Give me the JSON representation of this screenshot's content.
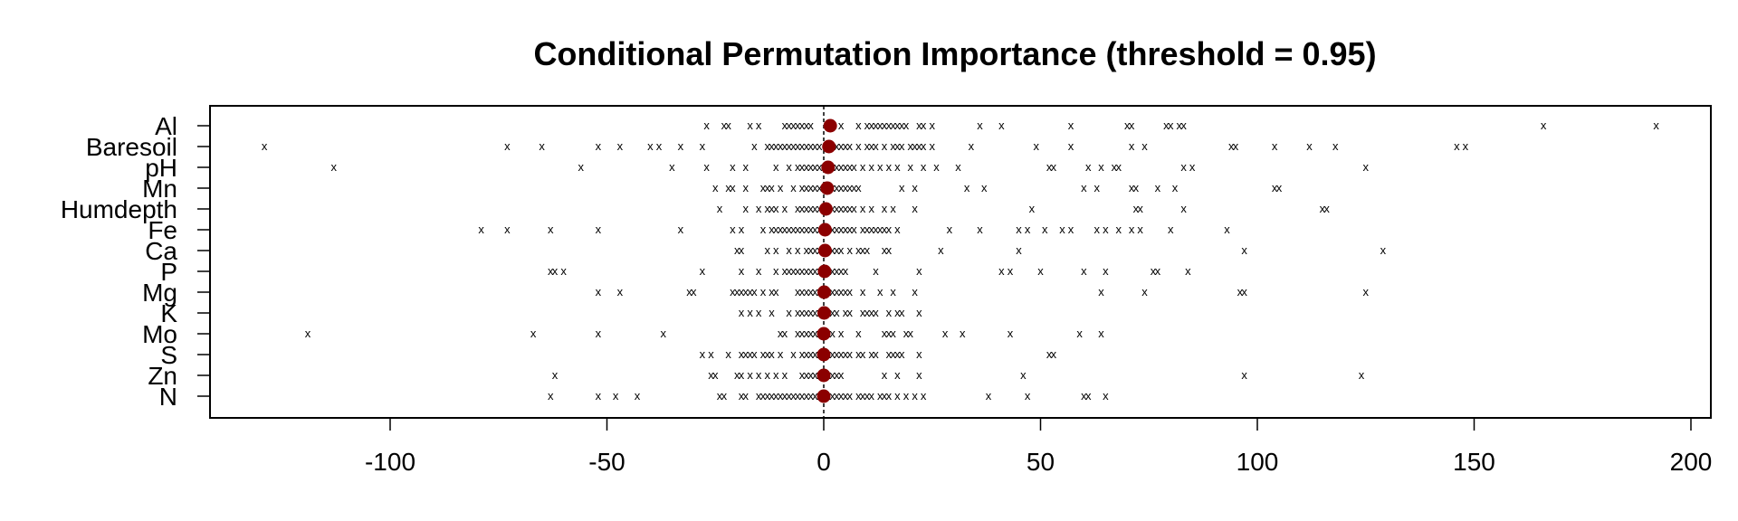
{
  "chart_data": {
    "type": "scatter",
    "title": "Conditional Permutation Importance (threshold = 0.95)",
    "xlabel": "",
    "ylabel": "",
    "xlim": [
      -145,
      202
    ],
    "xticks": [
      -100,
      -50,
      0,
      50,
      100,
      150,
      200
    ],
    "xtick_labels": [
      "-100",
      "-50",
      "0",
      "50",
      "100",
      "150",
      "200"
    ],
    "reference_line_x": 0,
    "grid": false,
    "legend": "none",
    "point_marker": "x",
    "mean_marker": "filled-circle",
    "colors": {
      "points": "#000000",
      "mean": "#8b0000",
      "reference": "#000000"
    },
    "variables": [
      {
        "name": "Al",
        "mean": 1.5,
        "values": [
          -27,
          -23,
          -22,
          -17,
          -15,
          -9,
          -8,
          -7,
          -6,
          -5,
          -4,
          -3,
          1,
          2,
          4,
          8,
          10,
          11,
          12,
          13,
          14,
          15,
          16,
          17,
          18,
          19,
          22,
          23,
          25,
          36,
          41,
          57,
          70,
          71,
          79,
          80,
          82,
          83,
          166,
          192
        ]
      },
      {
        "name": "Baresoil",
        "mean": 1.2,
        "values": [
          -129,
          -73,
          -65,
          -52,
          -47,
          -40,
          -38,
          -33,
          -28,
          -16,
          -13,
          -12,
          -11,
          -10,
          -9,
          -8,
          -7,
          -6,
          -5,
          -4,
          -3,
          -2,
          -1,
          1,
          2,
          3,
          4,
          5,
          6,
          8,
          10,
          11,
          12,
          14,
          16,
          17,
          18,
          20,
          21,
          22,
          23,
          25,
          34,
          49,
          57,
          71,
          74,
          94,
          95,
          104,
          112,
          118,
          146,
          148
        ]
      },
      {
        "name": "pH",
        "mean": 1.0,
        "values": [
          -113,
          -56,
          -35,
          -27,
          -21,
          -18,
          -11,
          -8,
          -6,
          -5,
          -4,
          -3,
          -2,
          -1,
          1,
          2,
          3,
          4,
          5,
          6,
          7,
          9,
          11,
          13,
          15,
          17,
          20,
          23,
          26,
          31,
          52,
          53,
          61,
          64,
          67,
          68,
          83,
          85,
          125
        ]
      },
      {
        "name": "Mn",
        "mean": 0.8,
        "values": [
          -25,
          -22,
          -21,
          -18,
          -14,
          -13,
          -12,
          -10,
          -7,
          -5,
          -4,
          -3,
          -2,
          -1,
          1,
          2,
          3,
          4,
          5,
          6,
          7,
          8,
          18,
          21,
          33,
          37,
          60,
          63,
          71,
          72,
          77,
          81,
          104,
          105
        ]
      },
      {
        "name": "Humdepth",
        "mean": 0.5,
        "values": [
          -24,
          -18,
          -15,
          -13,
          -12,
          -11,
          -9,
          -6,
          -5,
          -4,
          -3,
          -2,
          -1,
          1,
          2,
          3,
          4,
          5,
          6,
          7,
          9,
          11,
          14,
          16,
          21,
          48,
          72,
          73,
          83,
          115,
          116
        ]
      },
      {
        "name": "Fe",
        "mean": 0.3,
        "values": [
          -79,
          -73,
          -63,
          -52,
          -33,
          -21,
          -19,
          -14,
          -12,
          -11,
          -10,
          -9,
          -8,
          -7,
          -6,
          -5,
          -4,
          -3,
          -2,
          -1,
          1,
          2,
          3,
          4,
          5,
          6,
          7,
          9,
          10,
          11,
          12,
          13,
          14,
          15,
          17,
          29,
          36,
          45,
          47,
          51,
          55,
          57,
          63,
          65,
          68,
          71,
          73,
          80,
          93
        ]
      },
      {
        "name": "Ca",
        "mean": 0.3,
        "values": [
          -20,
          -19,
          -13,
          -11,
          -8,
          -6,
          -4,
          -3,
          -2,
          -1,
          1,
          2,
          3,
          4,
          6,
          8,
          9,
          10,
          14,
          15,
          27,
          45,
          97,
          129
        ]
      },
      {
        "name": "P",
        "mean": 0.2,
        "values": [
          -63,
          -62,
          -60,
          -28,
          -19,
          -15,
          -11,
          -9,
          -8,
          -7,
          -6,
          -5,
          -4,
          -3,
          -2,
          -1,
          1,
          2,
          3,
          4,
          5,
          12,
          22,
          41,
          43,
          50,
          60,
          65,
          76,
          77,
          84
        ]
      },
      {
        "name": "Mg",
        "mean": 0.1,
        "values": [
          -52,
          -47,
          -31,
          -30,
          -21,
          -20,
          -19,
          -18,
          -17,
          -16,
          -14,
          -12,
          -11,
          -6,
          -5,
          -4,
          -3,
          -2,
          -1,
          1,
          2,
          3,
          4,
          5,
          6,
          9,
          13,
          16,
          21,
          64,
          74,
          96,
          97,
          125
        ]
      },
      {
        "name": "K",
        "mean": 0.1,
        "values": [
          -19,
          -17,
          -15,
          -12,
          -8,
          -6,
          -5,
          -4,
          -3,
          -2,
          -1,
          1,
          2,
          3,
          5,
          6,
          9,
          10,
          11,
          12,
          15,
          17,
          18,
          22
        ]
      },
      {
        "name": "Mo",
        "mean": 0.0,
        "values": [
          -119,
          -67,
          -52,
          -37,
          -10,
          -9,
          -6,
          -5,
          -4,
          -3,
          -2,
          -1,
          1,
          2,
          4,
          8,
          14,
          15,
          16,
          19,
          20,
          28,
          32,
          43,
          59,
          64
        ]
      },
      {
        "name": "S",
        "mean": 0.0,
        "values": [
          -28,
          -26,
          -22,
          -19,
          -18,
          -17,
          -16,
          -14,
          -13,
          -12,
          -10,
          -7,
          -5,
          -4,
          -3,
          -2,
          -1,
          1,
          2,
          3,
          4,
          5,
          6,
          8,
          9,
          11,
          12,
          15,
          16,
          17,
          18,
          22,
          52,
          53
        ]
      },
      {
        "name": "Zn",
        "mean": 0.0,
        "values": [
          -62,
          -26,
          -25,
          -20,
          -19,
          -17,
          -15,
          -13,
          -11,
          -9,
          -5,
          -4,
          -3,
          -2,
          -1,
          1,
          2,
          3,
          4,
          14,
          17,
          22,
          46,
          97,
          124
        ]
      },
      {
        "name": "N",
        "mean": 0.0,
        "values": [
          -63,
          -52,
          -48,
          -43,
          -24,
          -23,
          -19,
          -18,
          -15,
          -14,
          -13,
          -12,
          -11,
          -10,
          -9,
          -8,
          -7,
          -6,
          -5,
          -4,
          -3,
          -2,
          -1,
          1,
          2,
          3,
          4,
          5,
          6,
          8,
          9,
          10,
          11,
          13,
          14,
          15,
          17,
          19,
          21,
          23,
          38,
          47,
          60,
          61,
          65
        ]
      }
    ]
  }
}
